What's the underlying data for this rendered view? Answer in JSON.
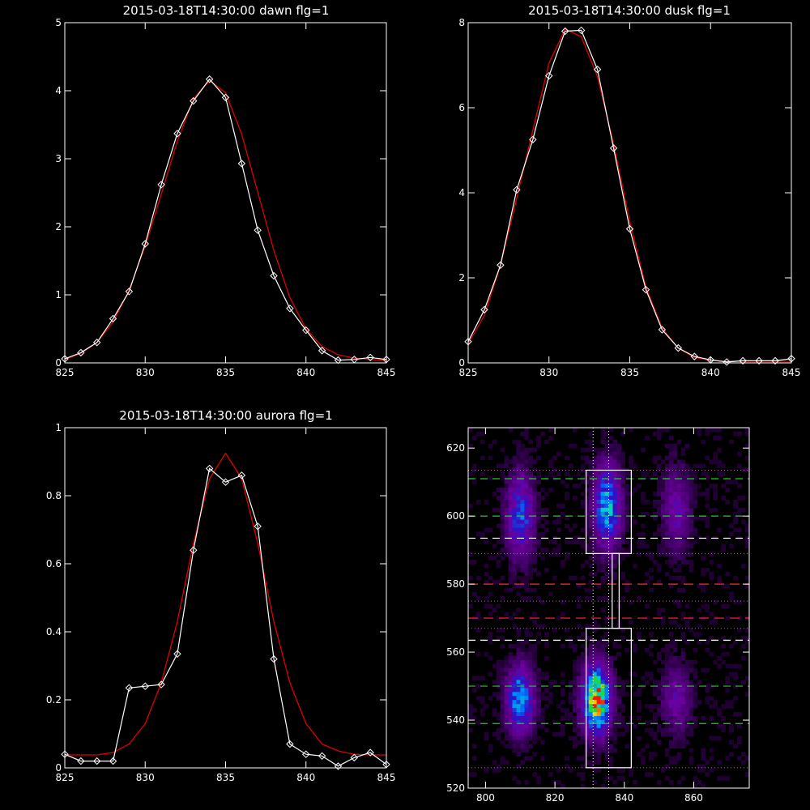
{
  "chart_data": [
    {
      "type": "line",
      "title": "2015-03-18T14:30:00 dawn flg=1",
      "xlim": [
        825,
        845
      ],
      "ylim": [
        0,
        5
      ],
      "xticks": [
        825,
        830,
        835,
        840,
        845
      ],
      "yticks": [
        0,
        1,
        2,
        3,
        4,
        5
      ],
      "colors": {
        "data": "#ffffff",
        "fit": "#e00000"
      },
      "series": [
        {
          "marker": "diamond",
          "x": [
            825,
            826,
            827,
            828,
            829,
            830,
            831,
            832,
            833,
            834,
            835,
            836,
            837,
            838,
            839,
            840,
            841,
            842,
            843,
            844,
            845
          ],
          "y": [
            0.06,
            0.15,
            0.3,
            0.65,
            1.05,
            1.75,
            2.62,
            3.37,
            3.85,
            4.17,
            3.9,
            2.93,
            1.95,
            1.28,
            0.8,
            0.48,
            0.18,
            0.04,
            0.05,
            0.08,
            0.05
          ]
        },
        {
          "x": [
            825,
            826,
            827,
            828,
            829,
            830,
            831,
            832,
            833,
            834,
            835,
            836,
            837,
            838,
            839,
            840,
            841,
            842,
            843,
            844,
            845
          ],
          "y": [
            0.05,
            0.14,
            0.3,
            0.6,
            1.07,
            1.72,
            2.48,
            3.26,
            3.88,
            4.15,
            3.97,
            3.36,
            2.51,
            1.65,
            0.96,
            0.5,
            0.24,
            0.12,
            0.07,
            0.05,
            0.04
          ]
        }
      ]
    },
    {
      "type": "line",
      "title": "2015-03-18T14:30:00 dusk flg=1",
      "xlim": [
        825,
        845
      ],
      "ylim": [
        0,
        8
      ],
      "xticks": [
        825,
        830,
        835,
        840,
        845
      ],
      "yticks": [
        0,
        2,
        4,
        6,
        8
      ],
      "colors": {
        "data": "#ffffff",
        "fit": "#e00000"
      },
      "series": [
        {
          "marker": "diamond",
          "x": [
            825,
            826,
            827,
            828,
            829,
            830,
            831,
            832,
            833,
            834,
            835,
            836,
            837,
            838,
            839,
            840,
            841,
            842,
            843,
            844,
            845
          ],
          "y": [
            0.5,
            1.25,
            2.3,
            4.07,
            5.25,
            6.75,
            7.8,
            7.82,
            6.9,
            5.05,
            3.15,
            1.72,
            0.78,
            0.35,
            0.15,
            0.07,
            0.02,
            0.05,
            0.05,
            0.05,
            0.1
          ]
        },
        {
          "x": [
            825,
            826,
            827,
            828,
            829,
            830,
            831,
            832,
            833,
            834,
            835,
            836,
            837,
            838,
            839,
            840,
            841,
            842,
            843,
            844,
            845
          ],
          "y": [
            0.45,
            1.12,
            2.3,
            3.87,
            5.47,
            7.05,
            7.85,
            7.67,
            6.73,
            5.15,
            3.32,
            1.78,
            0.82,
            0.34,
            0.13,
            0.06,
            0.04,
            0.04,
            0.04,
            0.04,
            0.04
          ]
        }
      ]
    },
    {
      "type": "line",
      "title": "2015-03-18T14:30:00 aurora flg=1",
      "xlim": [
        825,
        845
      ],
      "ylim": [
        0,
        1.0
      ],
      "xticks": [
        825,
        830,
        835,
        840,
        845
      ],
      "yticks": [
        0,
        0.2,
        0.4,
        0.6,
        0.8,
        1.0
      ],
      "colors": {
        "data": "#ffffff",
        "fit": "#e00000"
      },
      "series": [
        {
          "marker": "diamond",
          "x": [
            825,
            826,
            827,
            828,
            829,
            830,
            831,
            832,
            833,
            834,
            835,
            836,
            837,
            838,
            839,
            840,
            841,
            842,
            843,
            844,
            845
          ],
          "y": [
            0.04,
            0.02,
            0.02,
            0.02,
            0.235,
            0.24,
            0.245,
            0.335,
            0.64,
            0.88,
            0.84,
            0.86,
            0.71,
            0.32,
            0.07,
            0.04,
            0.035,
            0.005,
            0.03,
            0.045,
            0.01
          ]
        },
        {
          "x": [
            825,
            826,
            827,
            828,
            829,
            830,
            831,
            832,
            833,
            834,
            835,
            836,
            837,
            838,
            839,
            840,
            841,
            842,
            843,
            844,
            845
          ],
          "y": [
            0.038,
            0.038,
            0.038,
            0.045,
            0.07,
            0.13,
            0.25,
            0.43,
            0.66,
            0.85,
            0.925,
            0.85,
            0.66,
            0.43,
            0.25,
            0.13,
            0.07,
            0.05,
            0.04,
            0.038,
            0.038
          ]
        }
      ]
    },
    {
      "type": "heatmap",
      "xlim": [
        795,
        876
      ],
      "ylim": [
        520,
        626
      ],
      "xticks": [
        800,
        820,
        840,
        860
      ],
      "yticks": [
        520,
        540,
        560,
        580,
        600,
        620
      ],
      "colors": {
        "box": "#ffffff",
        "green_lines": "#22cc22",
        "white_lines": "#ffffff",
        "red_lines": "#dd2020",
        "dotted": "#a070a0"
      },
      "blobs": [
        {
          "x": 810,
          "y": 546,
          "peak": 0.6
        },
        {
          "x": 810,
          "y": 600,
          "peak": 0.45
        },
        {
          "x": 832,
          "y": 546,
          "peak": 1.0
        },
        {
          "x": 835,
          "y": 603,
          "peak": 0.6
        },
        {
          "x": 855,
          "y": 546,
          "peak": 0.25
        },
        {
          "x": 855,
          "y": 602,
          "peak": 0.25
        }
      ],
      "hlines": {
        "green_dashed": [
          539,
          550,
          600,
          611
        ],
        "white_dashed": [
          563.5,
          593.5
        ],
        "red_dashed": [
          570,
          580
        ],
        "dotted": [
          526,
          567,
          575,
          589,
          613.5
        ]
      },
      "vlines_dotted": [
        831,
        835.5
      ],
      "boxes": [
        {
          "x": [
            829,
            842
          ],
          "y": [
            526,
            567
          ]
        },
        {
          "x": [
            829,
            842
          ],
          "y": [
            589,
            613.5
          ]
        }
      ],
      "connector": {
        "x": [
          836.5,
          838.5
        ],
        "y": [
          567,
          589
        ]
      }
    }
  ]
}
